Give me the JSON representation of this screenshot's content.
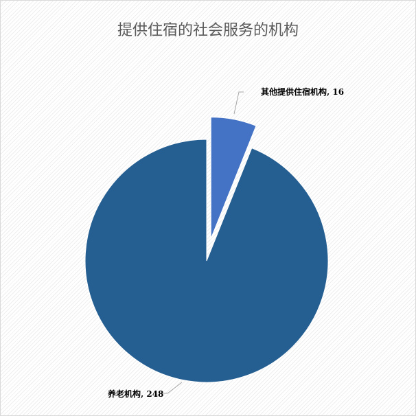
{
  "chart_data": {
    "type": "pie",
    "title": "提供住宿的社会服务的机构",
    "categories": [
      "其他提供住宿机构",
      "养老机构"
    ],
    "values": [
      16,
      248
    ],
    "colors": [
      "#4472C4",
      "#255E91"
    ],
    "exploded": [
      "其他提供住宿机构"
    ],
    "data_labels": [
      "其他提供住宿机构, 16",
      "养老机构, 248"
    ],
    "legend": "none"
  }
}
